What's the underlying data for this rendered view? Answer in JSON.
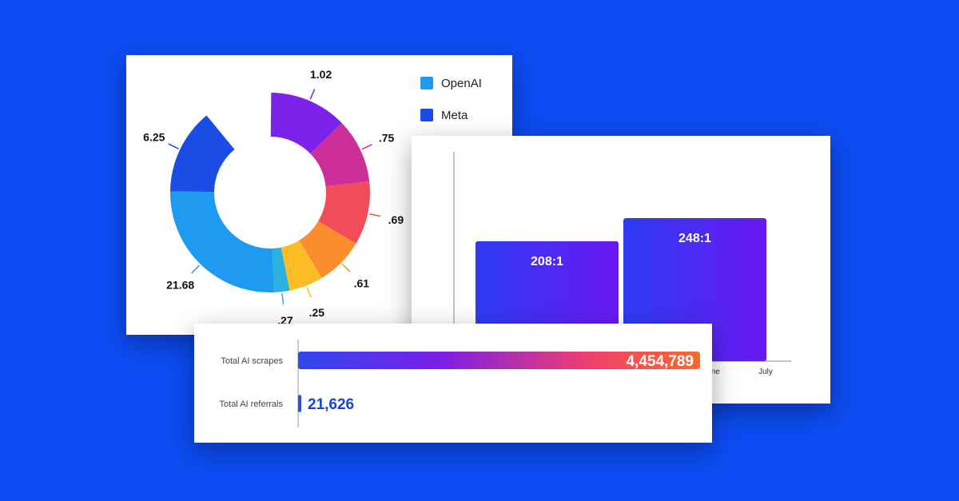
{
  "chart_data": [
    {
      "type": "pie",
      "variant": "donut",
      "legend": [
        {
          "label": "OpenAI",
          "color": "#1e9bf0"
        },
        {
          "label": "Meta",
          "color": "#1a4de6"
        }
      ],
      "legend_placement": "top-right",
      "slices": [
        {
          "label": "1.02",
          "value": 1.02,
          "color": "#7c22ea"
        },
        {
          "label": ".75",
          "value": 0.75,
          "color": "#cc2e9a"
        },
        {
          "label": ".69",
          "value": 0.69,
          "color": "#f24b5a"
        },
        {
          "label": ".61",
          "value": 0.61,
          "color": "#fb8d2e"
        },
        {
          "label": ".25",
          "value": 0.25,
          "color": "#fcbd24"
        },
        {
          "label": ".27",
          "value": 0.27,
          "color": "#2ab1e0"
        },
        {
          "label": "21.68",
          "value": 21.68,
          "color": "#1e9bf0"
        },
        {
          "label": "6.25",
          "value": 6.25,
          "color": "#1a4de6"
        }
      ]
    },
    {
      "type": "bar",
      "categories": [
        "June",
        "July"
      ],
      "values": [
        208,
        248
      ],
      "value_labels": [
        "208:1",
        "248:1"
      ],
      "gradient": [
        "#2d3cf3",
        "#6a18f2"
      ],
      "grid": false
    },
    {
      "type": "bar",
      "orientation": "horizontal",
      "categories": [
        "Total AI scrapes",
        "Total AI referrals"
      ],
      "values": [
        4454789,
        21626
      ],
      "value_labels": [
        "4,454,789",
        "21,626"
      ],
      "gradient": [
        "#2e49ee",
        "#7b1ee8",
        "#ee3f6f",
        "#fb6a2c"
      ]
    }
  ]
}
